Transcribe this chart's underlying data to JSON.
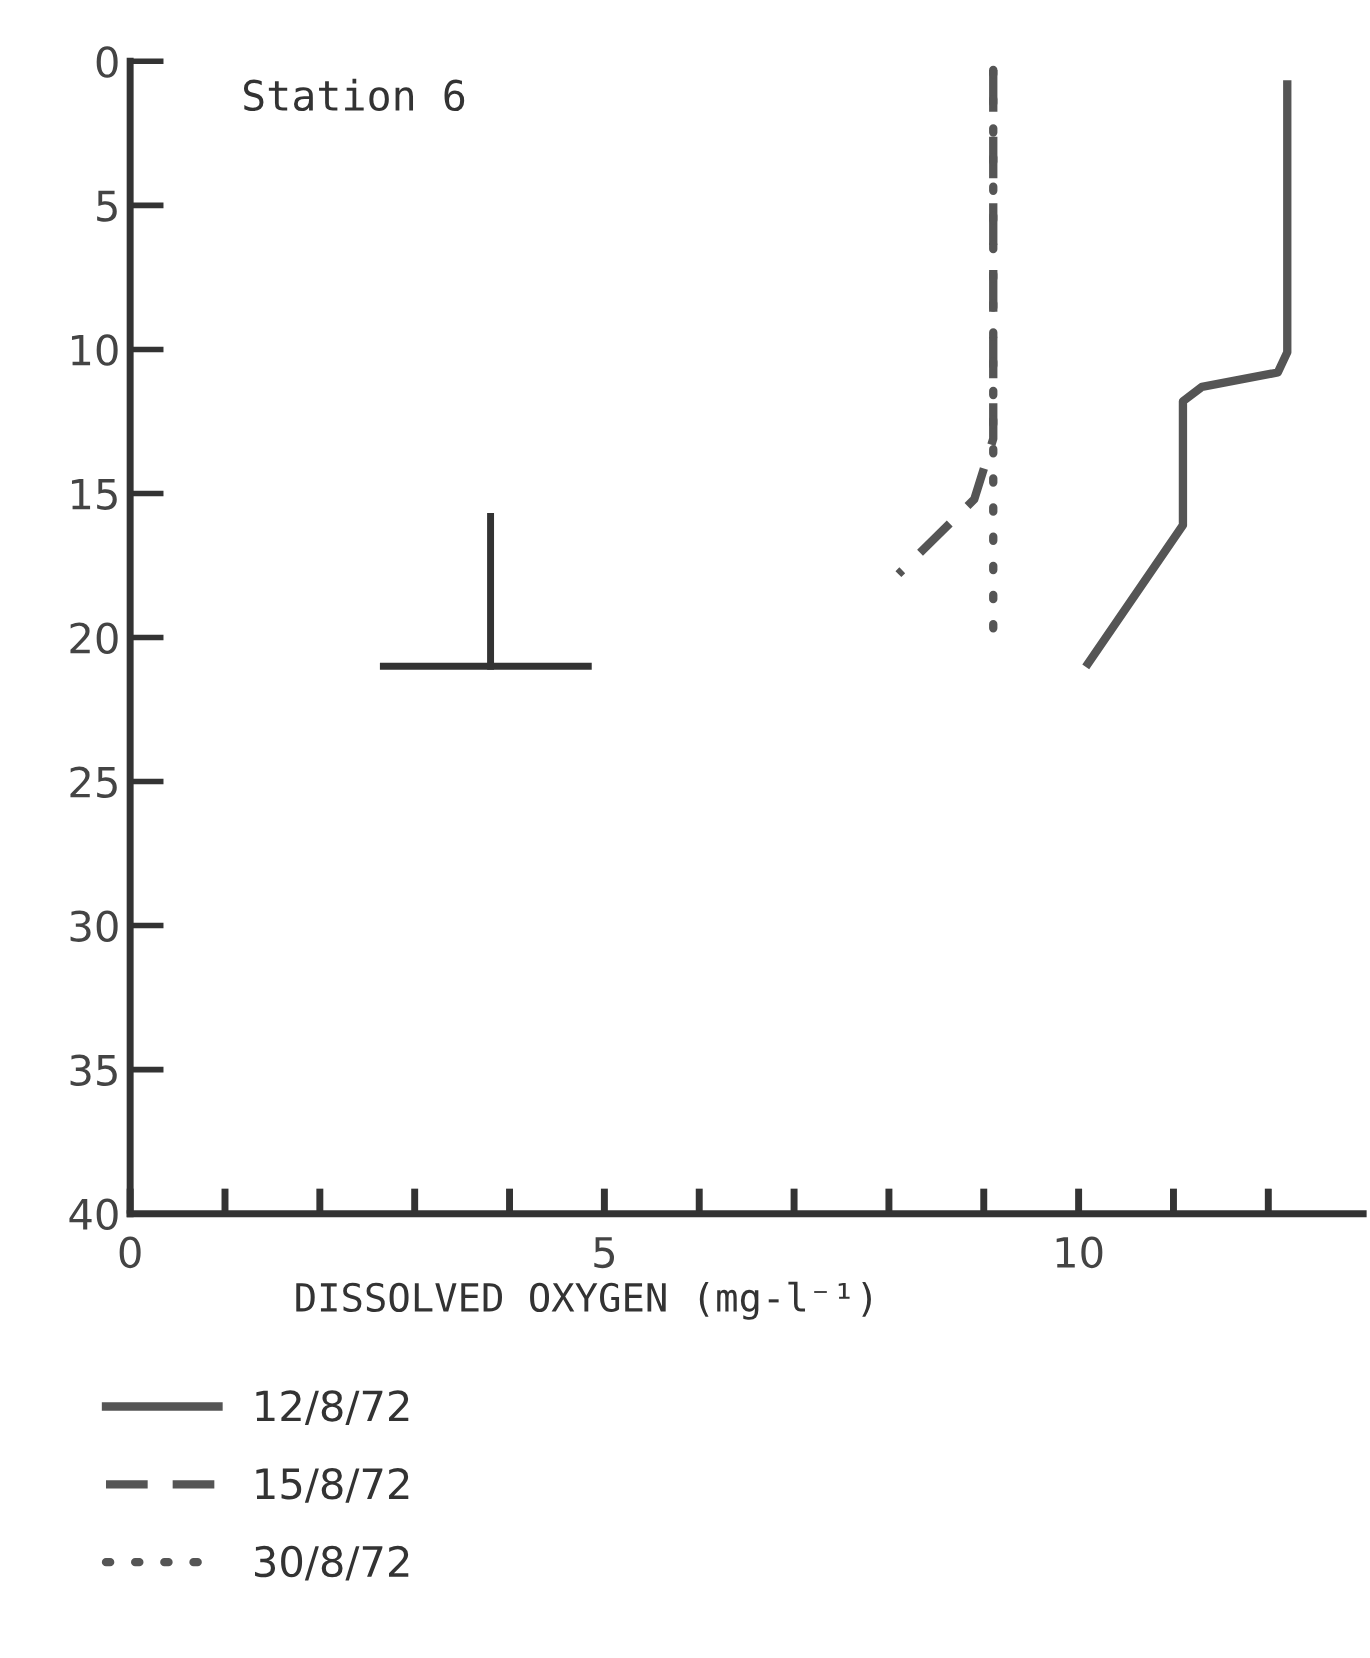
{
  "chart_data": {
    "type": "line",
    "title": "Station 6",
    "xlabel": "DISSOLVED OXYGEN (mg-l⁻¹)",
    "xlim": [
      0,
      13
    ],
    "ylim": [
      40,
      0
    ],
    "xticks": [
      0,
      {
        "value": 1,
        "label": null
      },
      {
        "value": 2,
        "label": null
      },
      {
        "value": 3,
        "label": null
      },
      {
        "value": 4,
        "label": null
      },
      5,
      {
        "value": 6,
        "label": null
      },
      {
        "value": 7,
        "label": null
      },
      {
        "value": 8,
        "label": null
      },
      {
        "value": 9,
        "label": null
      },
      10,
      {
        "value": 11,
        "label": null
      },
      {
        "value": 12,
        "label": null
      }
    ],
    "yticks": [
      0,
      5,
      10,
      15,
      20,
      25,
      30,
      35,
      40
    ],
    "series": [
      {
        "name": "12/8/72",
        "color": "#555555",
        "line_style": "solid",
        "x": [
          12.2,
          12.2,
          12.1,
          11.3,
          11.1,
          11.1,
          11.1,
          10.1
        ],
        "values": [
          0.8,
          10.1,
          10.8,
          11.3,
          11.8,
          13.5,
          16.1,
          20.9
        ]
      },
      {
        "name": "15/8/72",
        "color": "#555555",
        "line_style": "dashed",
        "x": [
          9.1,
          9.1,
          8.9,
          8.1
        ],
        "values": [
          0.3,
          13.1,
          15.2,
          17.8
        ]
      },
      {
        "name": "30/8/72",
        "color": "#555555",
        "line_style": "dotted",
        "x": [
          9.1,
          9.1
        ],
        "values": [
          0.3,
          19.7
        ]
      }
    ],
    "grid": false,
    "legend": "bottom left",
    "marker": "none"
  }
}
